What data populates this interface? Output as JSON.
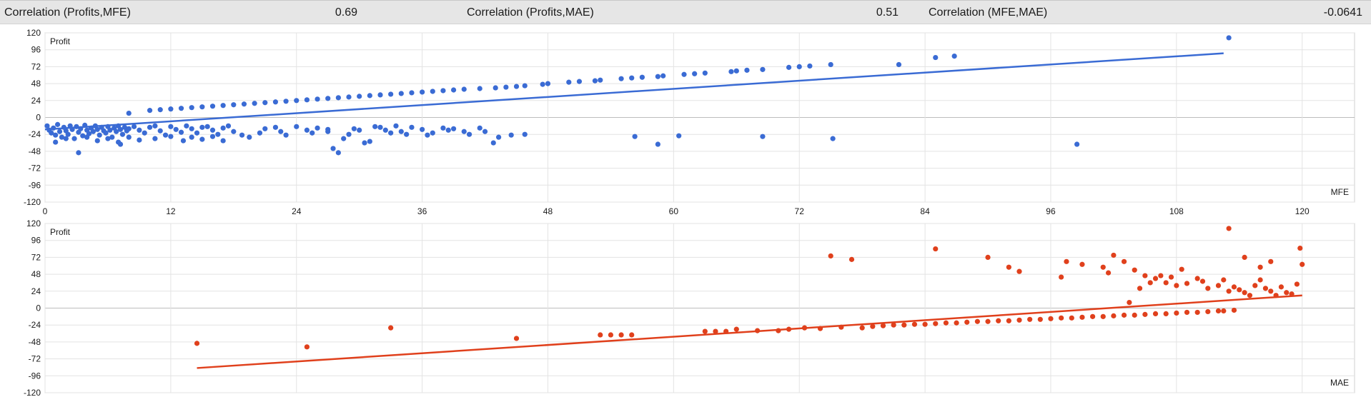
{
  "stats": [
    {
      "label": "Correlation (Profits,MFE)",
      "value": "0.69"
    },
    {
      "label": "Correlation (Profits,MAE)",
      "value": "0.51"
    },
    {
      "label": "Correlation (MFE,MAE)",
      "value": "-0.0641"
    }
  ],
  "chart_data": [
    {
      "type": "scatter",
      "title": "",
      "xlabel": "MFE",
      "ylabel": "Profit",
      "xlim": [
        0,
        125
      ],
      "ylim": [
        -120,
        120
      ],
      "x_ticks": [
        0,
        12,
        24,
        36,
        48,
        60,
        72,
        84,
        96,
        108,
        120
      ],
      "y_ticks": [
        120,
        96,
        72,
        48,
        24,
        0,
        -24,
        -48,
        -72,
        -96,
        -120
      ],
      "grid": true,
      "color": "#3a6bd4",
      "trendline": {
        "x": [
          0,
          112.5
        ],
        "y": [
          -17,
          91
        ]
      },
      "points": [
        [
          0.2,
          -12
        ],
        [
          0.4,
          -18
        ],
        [
          0.6,
          -22
        ],
        [
          0.8,
          -15
        ],
        [
          1.0,
          -25
        ],
        [
          1.2,
          -10
        ],
        [
          1.4,
          -20
        ],
        [
          1.6,
          -28
        ],
        [
          1.8,
          -14
        ],
        [
          2.0,
          -19
        ],
        [
          2.2,
          -24
        ],
        [
          2.4,
          -12
        ],
        [
          2.6,
          -17
        ],
        [
          2.8,
          -30
        ],
        [
          3.0,
          -13
        ],
        [
          3.2,
          -21
        ],
        [
          3.4,
          -16
        ],
        [
          3.6,
          -26
        ],
        [
          3.8,
          -11
        ],
        [
          4.0,
          -18
        ],
        [
          4.2,
          -23
        ],
        [
          4.4,
          -15
        ],
        [
          4.6,
          -20
        ],
        [
          4.8,
          -12
        ],
        [
          5.0,
          -17
        ],
        [
          5.2,
          -25
        ],
        [
          5.4,
          -14
        ],
        [
          5.6,
          -19
        ],
        [
          5.8,
          -22
        ],
        [
          6.0,
          -13
        ],
        [
          6.2,
          -18
        ],
        [
          6.4,
          -28
        ],
        [
          6.6,
          -15
        ],
        [
          6.8,
          -20
        ],
        [
          7.0,
          -12
        ],
        [
          7.2,
          -17
        ],
        [
          7.4,
          -24
        ],
        [
          7.6,
          -14
        ],
        [
          7.8,
          -19
        ],
        [
          8.0,
          -16
        ],
        [
          8.5,
          -13
        ],
        [
          9.0,
          -18
        ],
        [
          9.5,
          -22
        ],
        [
          10.0,
          -14
        ],
        [
          10.5,
          -12
        ],
        [
          11.0,
          -19
        ],
        [
          11.5,
          -25
        ],
        [
          12.0,
          -13
        ],
        [
          12.5,
          -17
        ],
        [
          13.0,
          -21
        ],
        [
          13.5,
          -12
        ],
        [
          14.0,
          -16
        ],
        [
          14.5,
          -22
        ],
        [
          15.0,
          -14
        ],
        [
          15.5,
          -13
        ],
        [
          16.0,
          -18
        ],
        [
          16.5,
          -24
        ],
        [
          17.0,
          -15
        ],
        [
          17.5,
          -12
        ],
        [
          18.0,
          -20
        ],
        [
          1.0,
          -35
        ],
        [
          2.0,
          -30
        ],
        [
          3.2,
          -50
        ],
        [
          4.0,
          -28
        ],
        [
          5.0,
          -33
        ],
        [
          6.0,
          -30
        ],
        [
          7.0,
          -35
        ],
        [
          8.0,
          -28
        ],
        [
          9.0,
          -32
        ],
        [
          7.2,
          -38
        ],
        [
          10.5,
          -30
        ],
        [
          12.0,
          -27
        ],
        [
          13.2,
          -33
        ],
        [
          14.0,
          -28
        ],
        [
          15.0,
          -31
        ],
        [
          16.0,
          -27
        ],
        [
          17.0,
          -33
        ],
        [
          18.8,
          -25
        ],
        [
          19.5,
          -28
        ],
        [
          20.5,
          -22
        ],
        [
          21.0,
          -16
        ],
        [
          22.0,
          -14
        ],
        [
          22.5,
          -20
        ],
        [
          23.0,
          -25
        ],
        [
          24.0,
          -13
        ],
        [
          25.0,
          -18
        ],
        [
          25.5,
          -22
        ],
        [
          26.0,
          -15
        ],
        [
          27.0,
          -17
        ],
        [
          27.5,
          -44
        ],
        [
          28.0,
          -50
        ],
        [
          27.0,
          -20
        ],
        [
          28.5,
          -30
        ],
        [
          29.0,
          -24
        ],
        [
          29.5,
          -16
        ],
        [
          30.0,
          -18
        ],
        [
          30.5,
          -36
        ],
        [
          31.0,
          -34
        ],
        [
          31.5,
          -13
        ],
        [
          32.0,
          -14
        ],
        [
          32.5,
          -18
        ],
        [
          33.0,
          -22
        ],
        [
          33.5,
          -12
        ],
        [
          34.0,
          -20
        ],
        [
          34.5,
          -24
        ],
        [
          35.0,
          -14
        ],
        [
          36.0,
          -17
        ],
        [
          36.5,
          -25
        ],
        [
          37.0,
          -22
        ],
        [
          38.0,
          -15
        ],
        [
          38.5,
          -18
        ],
        [
          39.0,
          -16
        ],
        [
          40.0,
          -20
        ],
        [
          40.5,
          -24
        ],
        [
          41.5,
          -15
        ],
        [
          42.0,
          -20
        ],
        [
          42.8,
          -36
        ],
        [
          43.3,
          -28
        ],
        [
          44.5,
          -25
        ],
        [
          45.8,
          -24
        ],
        [
          56.3,
          -27
        ],
        [
          58.5,
          -38
        ],
        [
          60.5,
          -26
        ],
        [
          68.5,
          -27
        ],
        [
          75.2,
          -30
        ],
        [
          98.5,
          -38
        ],
        [
          8.0,
          6
        ],
        [
          10.0,
          10
        ],
        [
          11.0,
          11
        ],
        [
          12.0,
          12
        ],
        [
          13.0,
          13
        ],
        [
          14.0,
          14
        ],
        [
          15.0,
          15
        ],
        [
          16.0,
          16
        ],
        [
          17.0,
          17
        ],
        [
          18.0,
          18
        ],
        [
          19.0,
          19
        ],
        [
          20.0,
          20
        ],
        [
          21.0,
          21
        ],
        [
          22.0,
          22
        ],
        [
          23.0,
          23
        ],
        [
          24.0,
          24
        ],
        [
          25.0,
          25
        ],
        [
          26.0,
          26
        ],
        [
          27.0,
          27
        ],
        [
          28.0,
          28
        ],
        [
          29.0,
          29
        ],
        [
          30.0,
          30
        ],
        [
          31.0,
          31
        ],
        [
          32.0,
          32
        ],
        [
          33.0,
          33
        ],
        [
          34.0,
          34
        ],
        [
          35.0,
          35
        ],
        [
          36.0,
          36
        ],
        [
          37.0,
          37
        ],
        [
          38.0,
          38
        ],
        [
          39.0,
          39
        ],
        [
          40.0,
          40
        ],
        [
          41.5,
          41
        ],
        [
          43.0,
          42
        ],
        [
          44.0,
          43
        ],
        [
          45.0,
          44
        ],
        [
          45.8,
          45
        ],
        [
          47.5,
          47
        ],
        [
          48.0,
          48
        ],
        [
          50.0,
          50
        ],
        [
          51.0,
          51
        ],
        [
          52.5,
          52
        ],
        [
          53.0,
          53
        ],
        [
          55.0,
          55
        ],
        [
          56.0,
          56
        ],
        [
          57.0,
          57
        ],
        [
          58.5,
          58
        ],
        [
          59.0,
          59
        ],
        [
          61.0,
          61
        ],
        [
          62.0,
          62
        ],
        [
          63.0,
          63
        ],
        [
          65.5,
          65
        ],
        [
          66.0,
          66
        ],
        [
          67.0,
          67
        ],
        [
          68.5,
          68
        ],
        [
          71.0,
          71
        ],
        [
          72.0,
          72
        ],
        [
          73.0,
          73
        ],
        [
          75.0,
          75
        ],
        [
          81.5,
          75
        ],
        [
          85.0,
          85
        ],
        [
          86.8,
          87
        ],
        [
          113.0,
          113
        ]
      ]
    },
    {
      "type": "scatter",
      "title": "",
      "xlabel": "MAE",
      "ylabel": "Profit",
      "xlim": [
        0,
        125
      ],
      "ylim": [
        -120,
        120
      ],
      "y_ticks": [
        120,
        96,
        72,
        48,
        24,
        0,
        -24,
        -48,
        -72,
        -96,
        -120
      ],
      "grid": true,
      "color": "#e0401c",
      "trendline": {
        "x": [
          14.5,
          120
        ],
        "y": [
          -85,
          18
        ]
      },
      "points": [
        [
          14.5,
          -50
        ],
        [
          25.0,
          -55
        ],
        [
          33.0,
          -28
        ],
        [
          45.0,
          -43
        ],
        [
          53.0,
          -38
        ],
        [
          54.0,
          -38
        ],
        [
          55.0,
          -38
        ],
        [
          56.0,
          -38
        ],
        [
          63.0,
          -33
        ],
        [
          64.0,
          -33
        ],
        [
          65.0,
          -33
        ],
        [
          66.0,
          -30
        ],
        [
          68.0,
          -32
        ],
        [
          70.0,
          -32
        ],
        [
          71.0,
          -30
        ],
        [
          72.5,
          -28
        ],
        [
          74.0,
          -29
        ],
        [
          76.0,
          -27
        ],
        [
          78.0,
          -28
        ],
        [
          79.0,
          -26
        ],
        [
          80.0,
          -25
        ],
        [
          81.0,
          -24
        ],
        [
          82.0,
          -24
        ],
        [
          83.0,
          -23
        ],
        [
          84.0,
          -23
        ],
        [
          85.0,
          -22
        ],
        [
          86.0,
          -21
        ],
        [
          87.0,
          -21
        ],
        [
          88.0,
          -20
        ],
        [
          89.0,
          -19
        ],
        [
          90.0,
          -19
        ],
        [
          91.0,
          -18
        ],
        [
          92.0,
          -18
        ],
        [
          93.0,
          -17
        ],
        [
          94.0,
          -16
        ],
        [
          95.0,
          -16
        ],
        [
          96.0,
          -15
        ],
        [
          97.0,
          -14
        ],
        [
          98.0,
          -14
        ],
        [
          99.0,
          -13
        ],
        [
          100.0,
          -12
        ],
        [
          101.0,
          -12
        ],
        [
          102.0,
          -11
        ],
        [
          103.0,
          -10
        ],
        [
          104.0,
          -10
        ],
        [
          105.0,
          -9
        ],
        [
          106.0,
          -8
        ],
        [
          107.0,
          -8
        ],
        [
          108.0,
          -7
        ],
        [
          109.0,
          -6
        ],
        [
          110.0,
          -6
        ],
        [
          111.0,
          -5
        ],
        [
          112.0,
          -4
        ],
        [
          112.5,
          -4
        ],
        [
          113.5,
          -3
        ],
        [
          75.0,
          74
        ],
        [
          77.0,
          69
        ],
        [
          85.0,
          84
        ],
        [
          90.0,
          72
        ],
        [
          92.0,
          58
        ],
        [
          93.0,
          52
        ],
        [
          97.0,
          44
        ],
        [
          97.5,
          66
        ],
        [
          99.0,
          62
        ],
        [
          101.0,
          58
        ],
        [
          101.5,
          50
        ],
        [
          102.0,
          75
        ],
        [
          103.0,
          66
        ],
        [
          104.0,
          54
        ],
        [
          105.0,
          46
        ],
        [
          106.0,
          42
        ],
        [
          107.0,
          36
        ],
        [
          108.0,
          32
        ],
        [
          109.0,
          35
        ],
        [
          110.0,
          42
        ],
        [
          111.0,
          28
        ],
        [
          112.0,
          32
        ],
        [
          113.0,
          24
        ],
        [
          113.5,
          30
        ],
        [
          114.0,
          26
        ],
        [
          114.5,
          22
        ],
        [
          115.0,
          18
        ],
        [
          115.5,
          32
        ],
        [
          116.0,
          40
        ],
        [
          116.5,
          28
        ],
        [
          117.0,
          24
        ],
        [
          117.5,
          18
        ],
        [
          118.0,
          30
        ],
        [
          118.5,
          22
        ],
        [
          119.0,
          20
        ],
        [
          119.5,
          34
        ],
        [
          120.0,
          62
        ],
        [
          119.8,
          85
        ],
        [
          113.0,
          113
        ],
        [
          106.5,
          46
        ],
        [
          108.5,
          55
        ],
        [
          110.5,
          38
        ],
        [
          112.5,
          40
        ],
        [
          114.5,
          72
        ],
        [
          116.0,
          58
        ],
        [
          117.0,
          66
        ],
        [
          103.5,
          8
        ],
        [
          104.5,
          28
        ],
        [
          105.5,
          36
        ],
        [
          107.5,
          44
        ]
      ]
    }
  ]
}
